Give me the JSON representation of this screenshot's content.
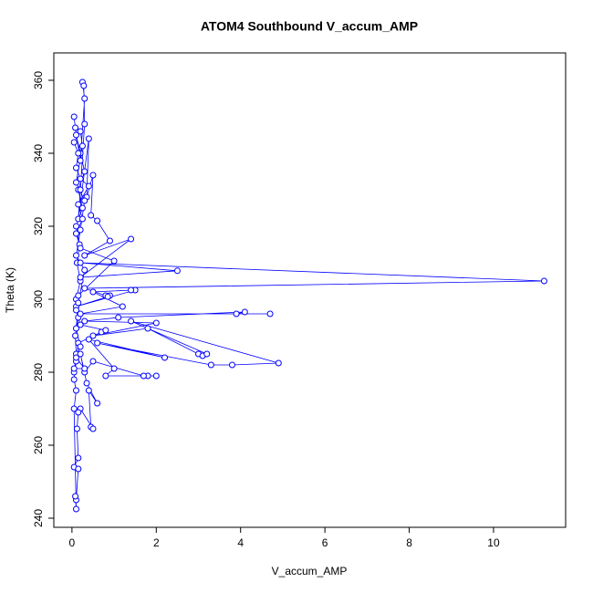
{
  "chart_data": {
    "type": "line",
    "title": "ATOM4 Southbound V_accum_AMP",
    "x_label": "V_accum_AMP",
    "y_label": "Theta (K)",
    "xlim": [
      -0.43,
      11.71
    ],
    "ylim": [
      237.5,
      367.5
    ],
    "xticks": [
      0,
      2,
      4,
      6,
      8,
      10
    ],
    "yticks": [
      240,
      260,
      280,
      300,
      320,
      340,
      360
    ],
    "markers": true,
    "x": [
      0.05,
      0.1,
      0.08,
      0.15,
      0.1,
      0.2,
      0.12,
      0.18,
      0.1,
      0.25,
      0.15,
      0.3,
      0.2,
      0.1,
      0.05,
      0.08,
      0.2,
      0.3,
      0.25,
      0.28,
      0.3,
      0.2,
      0.15,
      0.4,
      0.35,
      0.5,
      0.45,
      0.6,
      0.9,
      0.3,
      1.4,
      0.2,
      2.5,
      0.2,
      11.2,
      0.3,
      0.8,
      0.9,
      0.85,
      0.1,
      1.5,
      1.4,
      0.5,
      1.2,
      0.2,
      4.7,
      3.9,
      4.1,
      1.1,
      0.3,
      2.0,
      0.5,
      1.8,
      3.0,
      3.1,
      3.2,
      1.4,
      4.9,
      3.8,
      3.3,
      0.6,
      2.2,
      0.4,
      1.0,
      0.8,
      1.8,
      2.0,
      1.7,
      0.5,
      0.3,
      0.2,
      0.35,
      0.6,
      0.4,
      0.45,
      0.5,
      0.2,
      0.15,
      0.12,
      0.15,
      0.05,
      0.15,
      0.1,
      0.08,
      0.1,
      0.05,
      0.1,
      0.05,
      0.1,
      0.15,
      0.7,
      0.8,
      0.2,
      0.1,
      0.15,
      1.0,
      0.2,
      0.1,
      0.25,
      0.15,
      0.4,
      0.2,
      0.1,
      0.15,
      0.05,
      0.2,
      0.25,
      0.1,
      0.3,
      0.2,
      0.1,
      0.3,
      0.15,
      0.1,
      0.2,
      0.1,
      0.3,
      0.05
    ],
    "series": [
      {
        "name": "Theta",
        "color": "#0000ff",
        "values": [
          280,
          285,
          290,
          295,
          300,
          305,
          310,
          315,
          320,
          325,
          330,
          335,
          340,
          345,
          350,
          347,
          338,
          355,
          359.5,
          358.5,
          348,
          330,
          322,
          344,
          328,
          334,
          323,
          321.5,
          316,
          312,
          316.5,
          306,
          307.8,
          310,
          305,
          303,
          301,
          301,
          300.7,
          298,
          302.5,
          302.5,
          302,
          298,
          296,
          296,
          296,
          296.5,
          295,
          294,
          293.5,
          290,
          292,
          285,
          284.5,
          285,
          294,
          282.5,
          282,
          282,
          288,
          284,
          289,
          281,
          279,
          279,
          279,
          279,
          283,
          280,
          285,
          277,
          271.5,
          275,
          265,
          264.5,
          270,
          269,
          264.5,
          256.5,
          254,
          253.5,
          245,
          246,
          242.5,
          270,
          275,
          278,
          283,
          288,
          291,
          291.5,
          293,
          297,
          301,
          310.5,
          314,
          318,
          322,
          326,
          331,
          333,
          336,
          340,
          343,
          346,
          342,
          332,
          327,
          319,
          312,
          308,
          299,
          292,
          287,
          284,
          281,
          281
        ]
      }
    ]
  }
}
